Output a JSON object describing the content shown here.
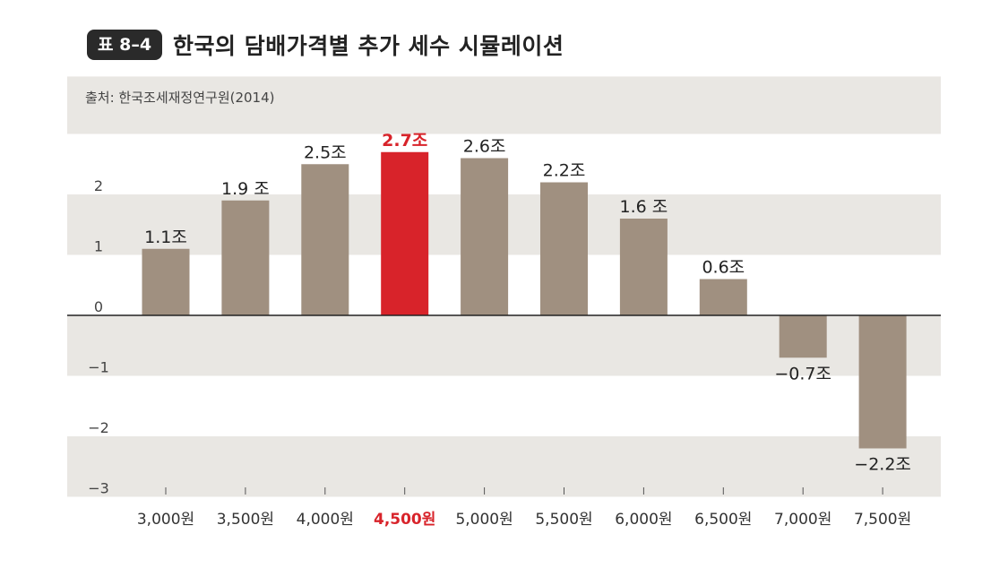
{
  "header": {
    "badge": "표 8–4",
    "title": "한국의 담배가격별 추가 세수 시뮬레이션"
  },
  "chart_data": {
    "type": "bar",
    "source": "출처: 한국조세재정연구원(2014)",
    "categories": [
      "3,000원",
      "3,500원",
      "4,000원",
      "4,500원",
      "5,000원",
      "5,500원",
      "6,000원",
      "6,500원",
      "7,000원",
      "7,500원"
    ],
    "values": [
      1.1,
      1.9,
      2.5,
      2.7,
      2.6,
      2.2,
      1.6,
      0.6,
      -0.7,
      -2.2
    ],
    "data_labels": [
      "1.1조",
      "1.9 조",
      "2.5조",
      "2.7조",
      "2.6조",
      "2.2조",
      "1.6 조",
      "0.6조",
      "−0.7조",
      "−2.2조"
    ],
    "highlight_index": 3,
    "yticks": [
      2,
      1,
      0,
      -1,
      -2,
      -3
    ],
    "ytick_labels": [
      "2",
      "1",
      "0",
      "−1",
      "−2",
      "−3"
    ],
    "ylim": [
      -3,
      3
    ],
    "colors": {
      "bar": "#a09080",
      "highlight": "#d8232a",
      "band": "#e9e7e3"
    }
  }
}
